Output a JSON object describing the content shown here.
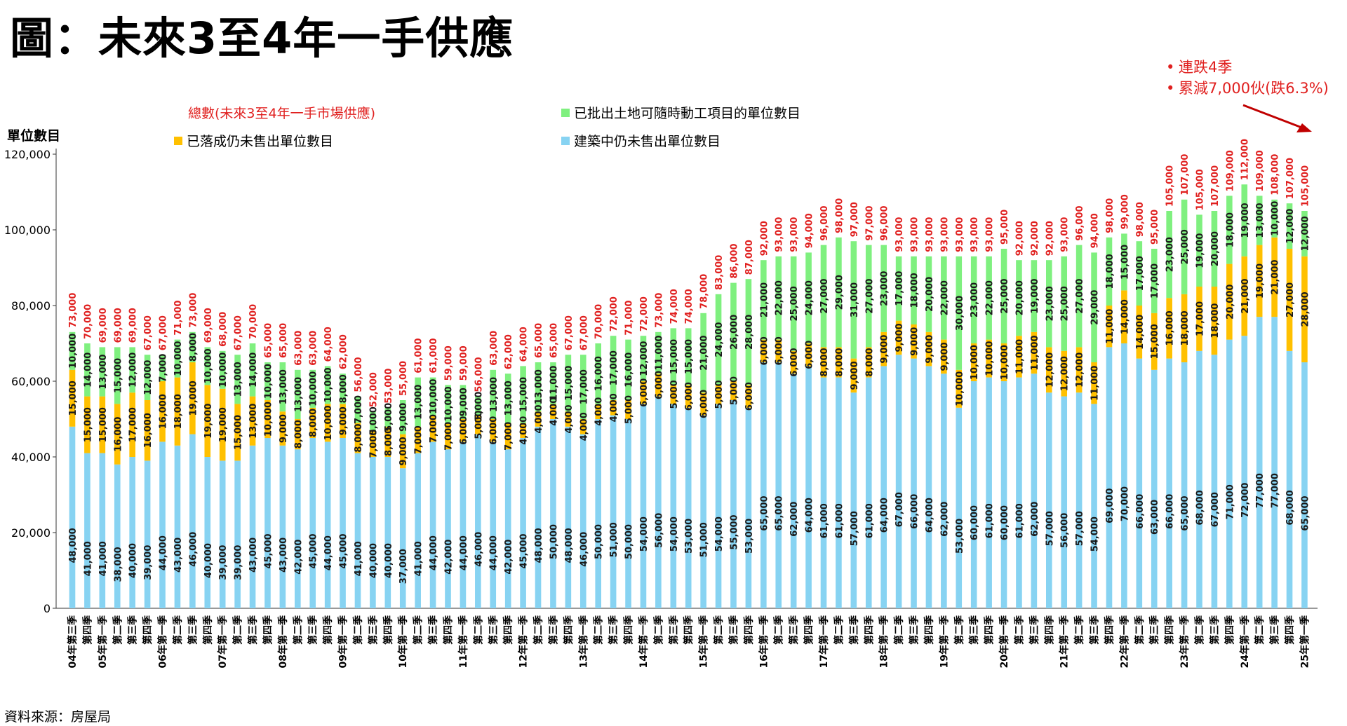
{
  "title": "圖：未來3至4年一手供應",
  "source": "資料來源：房屋局",
  "annotation": {
    "lines": [
      "連跌4季",
      "累減7,000伙(跌6.3%)"
    ],
    "color": "#e0201f"
  },
  "chart_data": {
    "type": "bar",
    "stacked": true,
    "ylabel": "單位數目",
    "ylim": [
      0,
      120000
    ],
    "yticks": [
      0,
      20000,
      40000,
      60000,
      80000,
      100000,
      120000
    ],
    "ytick_labels": [
      "0",
      "20,000",
      "40,000",
      "60,000",
      "80,000",
      "100,000",
      "120,000"
    ],
    "categories": [
      "04年第三季",
      "第四季",
      "05年第一季",
      "第二季",
      "第三季",
      "第四季",
      "06年第一季",
      "第二季",
      "第三季",
      "第四季",
      "07年第一季",
      "第二季",
      "第三季",
      "第四季",
      "08年第一季",
      "第二季",
      "第三季",
      "第四季",
      "09年第一季",
      "第二季",
      "第三季",
      "第四季",
      "10年第一季",
      "第二季",
      "第三季",
      "第四季",
      "11年第一季",
      "第二季",
      "第三季",
      "第四季",
      "12年第一季",
      "第二季",
      "第三季",
      "第四季",
      "13年第一季",
      "第二季",
      "第三季",
      "第四季",
      "14年第一季",
      "第二季",
      "第三季",
      "第四季",
      "15年第一季",
      "第二季",
      "第三季",
      "第四季",
      "16年第一季",
      "第二季",
      "第三季",
      "第四季",
      "17年第一季",
      "第二季",
      "第三季",
      "第四季",
      "18年第一季",
      "第二季",
      "第三季",
      "第四季",
      "19年第一季",
      "第二季",
      "第三季",
      "第四季",
      "20年第一季",
      "第二季",
      "第三季",
      "第四季",
      "21年第一季",
      "第二季",
      "第三季",
      "第四季",
      "22年第一季",
      "第二季",
      "第三季",
      "第四季",
      "23年第一季",
      "第二季",
      "第三季",
      "第四季",
      "24年第一季",
      "第二季",
      "第三季",
      "第四季",
      "25年第一季"
    ],
    "series": [
      {
        "name": "建築中仍未售出單位數目",
        "color": "#87d3f2",
        "values": [
          48000,
          41000,
          41000,
          38000,
          40000,
          39000,
          44000,
          43000,
          46000,
          40000,
          39000,
          39000,
          43000,
          45000,
          43000,
          42000,
          45000,
          44000,
          45000,
          41000,
          40000,
          40000,
          37000,
          41000,
          44000,
          42000,
          44000,
          46000,
          44000,
          42000,
          45000,
          48000,
          50000,
          48000,
          46000,
          50000,
          51000,
          50000,
          54000,
          56000,
          54000,
          53000,
          51000,
          54000,
          55000,
          53000,
          65000,
          65000,
          62000,
          64000,
          61000,
          61000,
          57000,
          61000,
          64000,
          67000,
          66000,
          64000,
          62000,
          53000,
          60000,
          61000,
          60000,
          61000,
          62000,
          57000,
          56000,
          57000,
          54000,
          69000,
          70000,
          66000,
          63000,
          66000,
          65000,
          68000,
          67000,
          71000,
          72000,
          77000,
          77000,
          68000,
          65000
        ]
      },
      {
        "name": "已落成仍未售出單位數目",
        "color": "#ffc000",
        "values": [
          15000,
          15000,
          15000,
          16000,
          17000,
          16000,
          16000,
          18000,
          19000,
          19000,
          19000,
          15000,
          13000,
          10000,
          9000,
          8000,
          8000,
          10000,
          9000,
          8000,
          7000,
          8000,
          9000,
          7000,
          7000,
          7000,
          6000,
          5000,
          6000,
          7000,
          4000,
          4000,
          4000,
          4000,
          4000,
          4000,
          4000,
          5000,
          6000,
          6000,
          5000,
          6000,
          6000,
          5000,
          5000,
          6000,
          6000,
          6000,
          6000,
          6000,
          8000,
          8000,
          9000,
          8000,
          9000,
          9000,
          9000,
          9000,
          9000,
          10000,
          10000,
          10000,
          10000,
          11000,
          11000,
          12000,
          12000,
          12000,
          11000,
          11000,
          14000,
          14000,
          15000,
          16000,
          18000,
          17000,
          18000,
          20000,
          21000,
          19000,
          21000,
          27000,
          28000
        ]
      },
      {
        "name": "已批出土地可隨時動工項目的單位數目",
        "color": "#7ff07f",
        "values": [
          10000,
          14000,
          13000,
          15000,
          12000,
          12000,
          7000,
          10000,
          8000,
          10000,
          10000,
          13000,
          14000,
          10000,
          13000,
          13000,
          10000,
          10000,
          8000,
          7000,
          5000,
          5000,
          9000,
          13000,
          10000,
          10000,
          9000,
          5000,
          13000,
          13000,
          15000,
          13000,
          11000,
          15000,
          17000,
          16000,
          17000,
          16000,
          12000,
          11000,
          15000,
          15000,
          21000,
          24000,
          26000,
          28000,
          21000,
          22000,
          25000,
          24000,
          27000,
          29000,
          31000,
          27000,
          23000,
          17000,
          18000,
          20000,
          22000,
          30000,
          23000,
          22000,
          25000,
          20000,
          19000,
          23000,
          25000,
          27000,
          29000,
          18000,
          15000,
          17000,
          17000,
          23000,
          25000,
          19000,
          20000,
          18000,
          19000,
          13000,
          10000,
          12000,
          12000
        ]
      }
    ],
    "totals": {
      "name": "總數(未來3至4年一手市場供應)",
      "color": "#e0201f",
      "values": [
        73000,
        70000,
        69000,
        69000,
        69000,
        67000,
        67000,
        71000,
        73000,
        69000,
        68000,
        67000,
        70000,
        65000,
        65000,
        63000,
        63000,
        64000,
        62000,
        56000,
        52000,
        53000,
        55000,
        61000,
        61000,
        59000,
        59000,
        56000,
        63000,
        62000,
        64000,
        65000,
        65000,
        67000,
        67000,
        70000,
        72000,
        71000,
        72000,
        73000,
        74000,
        74000,
        78000,
        83000,
        86000,
        87000,
        92000,
        93000,
        93000,
        94000,
        96000,
        98000,
        97000,
        97000,
        96000,
        93000,
        93000,
        93000,
        93000,
        93000,
        93000,
        93000,
        95000,
        92000,
        92000,
        92000,
        93000,
        96000,
        94000,
        98000,
        99000,
        98000,
        95000,
        105000,
        107000,
        105000,
        107000,
        109000,
        112000,
        109000,
        108000,
        107000,
        105000
      ]
    },
    "legend_order": [
      0,
      2,
      1,
      3
    ]
  }
}
